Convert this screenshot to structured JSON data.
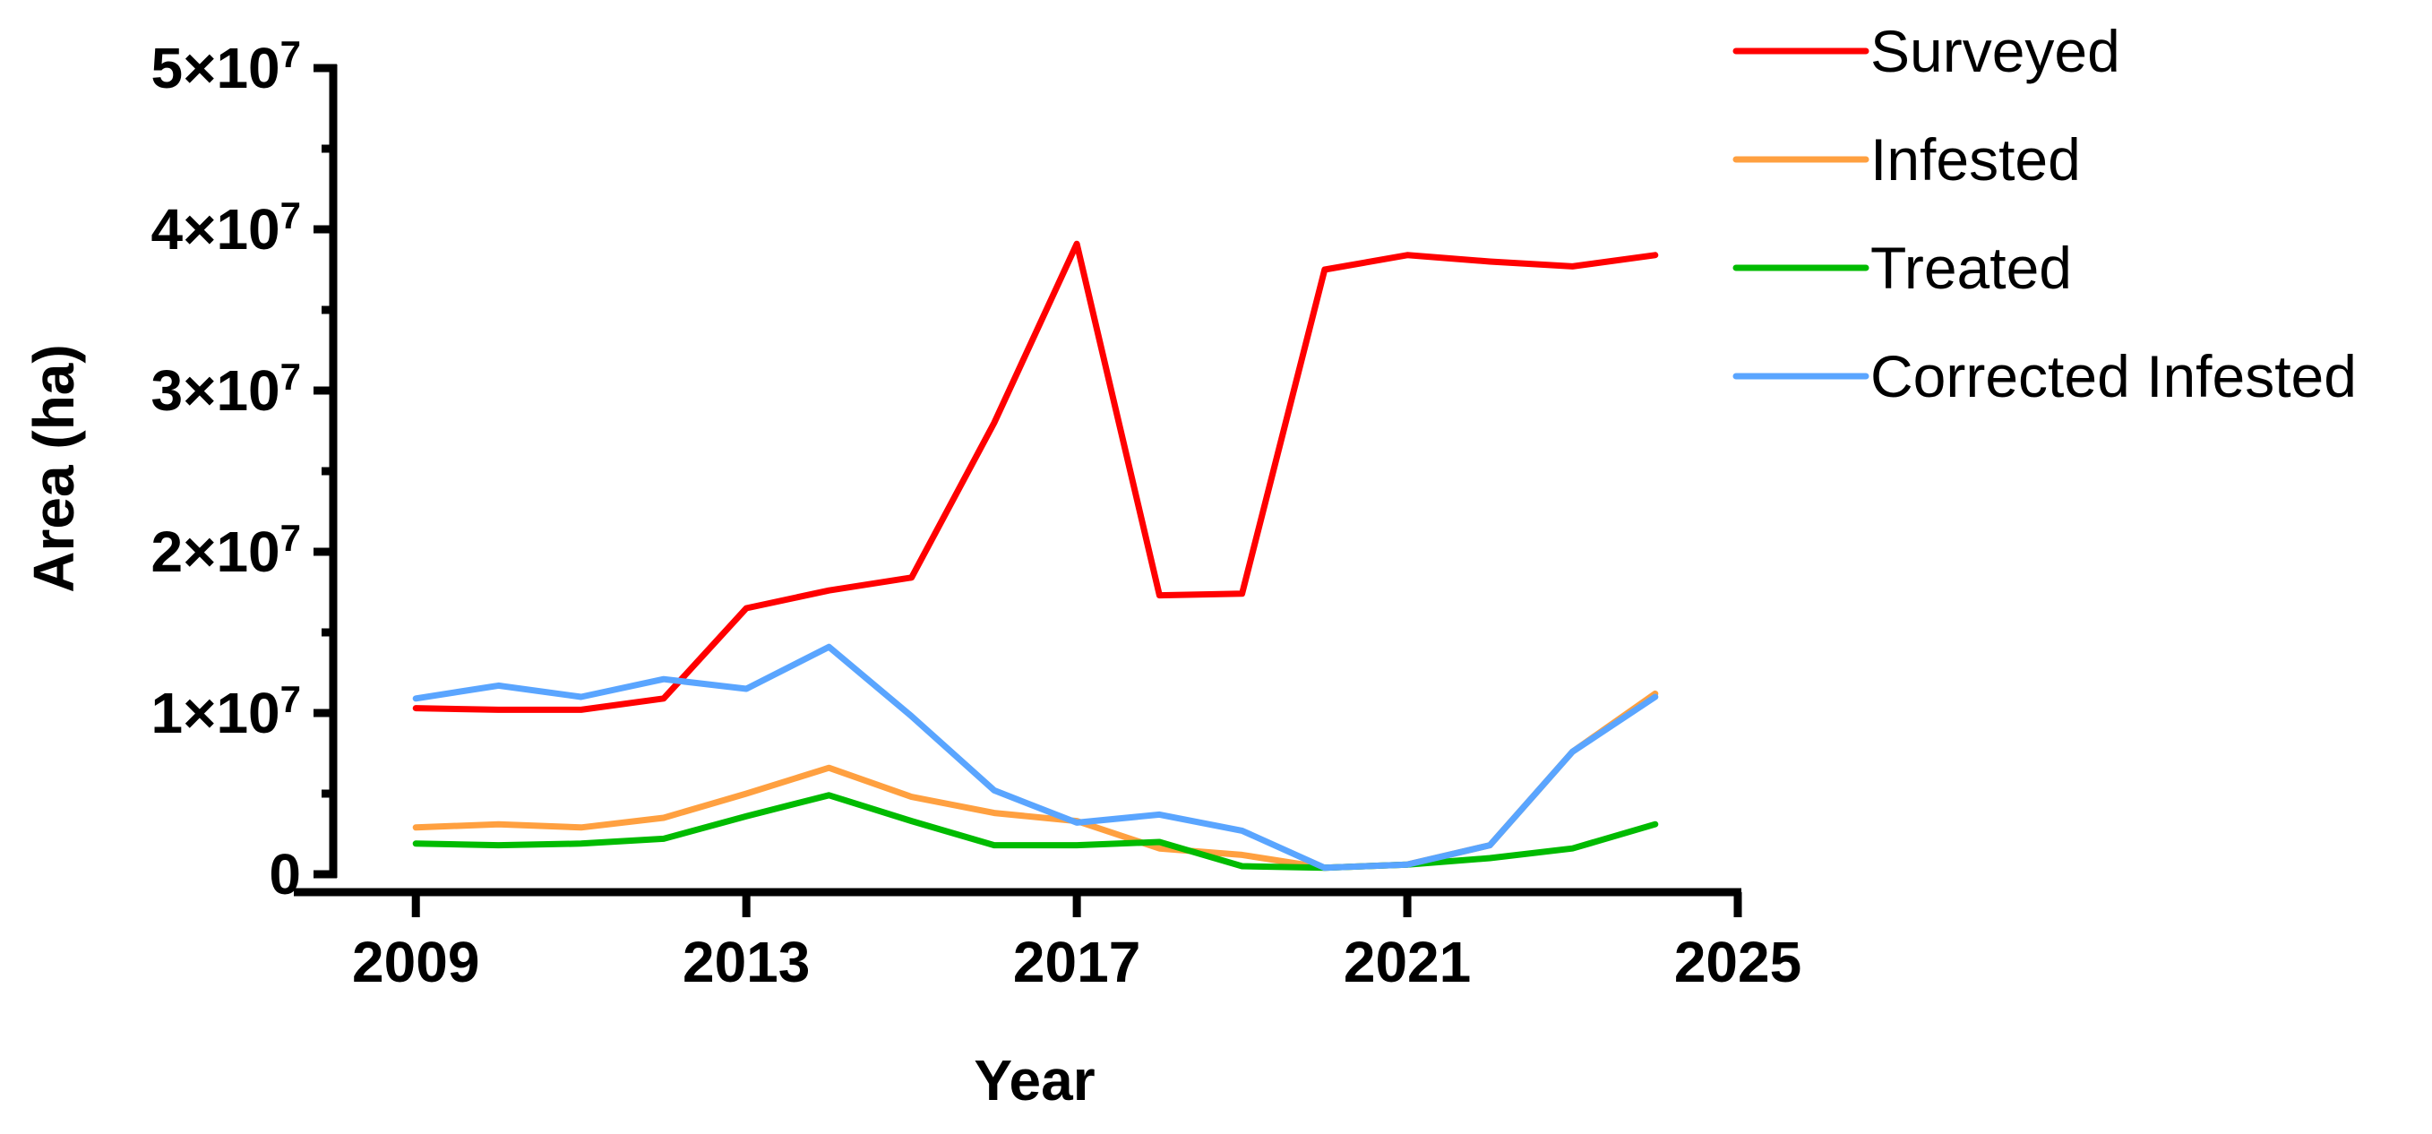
{
  "chart_data": {
    "type": "line",
    "xlabel": "Year",
    "ylabel": "Area (ha)",
    "xlim": [
      2008,
      2025
    ],
    "ylim": [
      0,
      50000000
    ],
    "x_ticks": [
      2009,
      2013,
      2017,
      2021,
      2025
    ],
    "y_ticks": [
      {
        "value": 0,
        "mantissa": "0",
        "exponent": ""
      },
      {
        "value": 10000000,
        "mantissa": "1×10",
        "exponent": "7"
      },
      {
        "value": 20000000,
        "mantissa": "2×10",
        "exponent": "7"
      },
      {
        "value": 30000000,
        "mantissa": "3×10",
        "exponent": "7"
      },
      {
        "value": 40000000,
        "mantissa": "4×10",
        "exponent": "7"
      },
      {
        "value": 50000000,
        "mantissa": "5×10",
        "exponent": "7"
      }
    ],
    "y_minor_tick_step": 5000000,
    "x": [
      2009,
      2010,
      2011,
      2012,
      2013,
      2014,
      2015,
      2016,
      2017,
      2018,
      2019,
      2020,
      2021,
      2022,
      2023,
      2024
    ],
    "series": [
      {
        "name": "Surveyed",
        "color": "#ff0000",
        "values": [
          10300000,
          10200000,
          10200000,
          10900000,
          16500000,
          17600000,
          18400000,
          28000000,
          39100000,
          17300000,
          17400000,
          37500000,
          38400000,
          38000000,
          37700000,
          38400000
        ]
      },
      {
        "name": "Infested",
        "color": "#ffa040",
        "values": [
          2900000,
          3100000,
          2900000,
          3500000,
          5000000,
          6600000,
          4800000,
          3800000,
          3300000,
          1600000,
          1200000,
          400000,
          600000,
          1800000,
          7600000,
          11200000
        ]
      },
      {
        "name": "Treated",
        "color": "#00bb00",
        "values": [
          1900000,
          1800000,
          1900000,
          2200000,
          3600000,
          4900000,
          3300000,
          1800000,
          1800000,
          2000000,
          500000,
          400000,
          600000,
          1000000,
          1600000,
          3100000
        ]
      },
      {
        "name": "Corrected Infested",
        "color": "#5aa5ff",
        "values": [
          10900000,
          11700000,
          11000000,
          12100000,
          11500000,
          14100000,
          9800000,
          5200000,
          3200000,
          3700000,
          2700000,
          400000,
          600000,
          1800000,
          7600000,
          11000000
        ]
      }
    ],
    "legend_position": "top-right",
    "grid": false
  }
}
